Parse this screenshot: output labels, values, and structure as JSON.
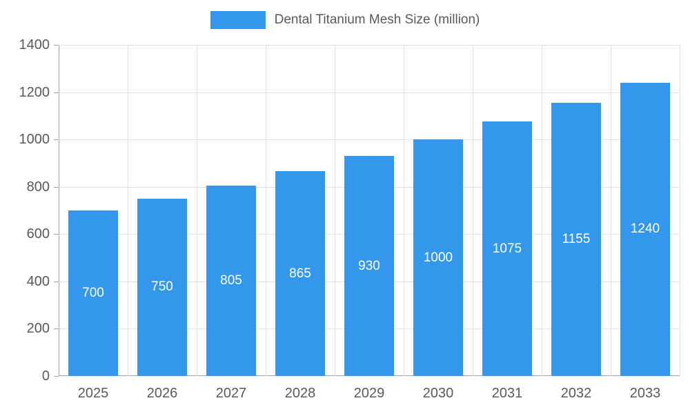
{
  "legend": {
    "label": "Dental Titanium Mesh Size (million)"
  },
  "colors": {
    "bar": "#3398ec",
    "bar_label": "#ffffff",
    "axis_label": "#595959",
    "grid": "#e0e0e0",
    "axis_line": "#a3a3a3"
  },
  "chart_data": {
    "type": "bar",
    "title": "Dental Titanium Mesh Size (million)",
    "categories": [
      "2025",
      "2026",
      "2027",
      "2028",
      "2029",
      "2030",
      "2031",
      "2032",
      "2033"
    ],
    "values": [
      700,
      750,
      805,
      865,
      930,
      1000,
      1075,
      1155,
      1240
    ],
    "xlabel": "",
    "ylabel": "",
    "ylim": [
      0,
      1400
    ],
    "ytick_interval": 200,
    "yticks": [
      0,
      200,
      400,
      600,
      800,
      1000,
      1200,
      1400
    ],
    "grid": true,
    "legend_position": "top",
    "bar_value_labels": "inside-center"
  }
}
